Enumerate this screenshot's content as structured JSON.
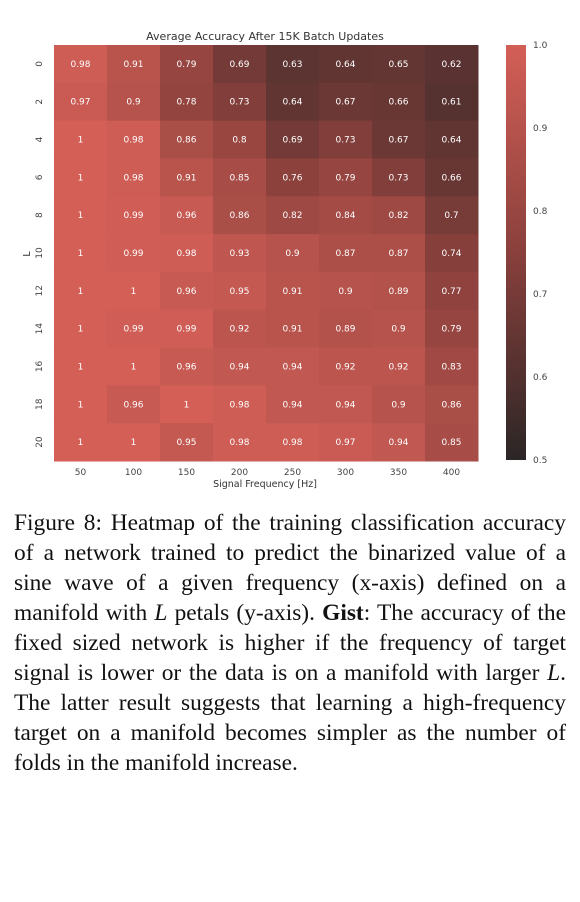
{
  "chart_data": {
    "type": "heatmap",
    "title": "Average Accuracy After 15K Batch Updates",
    "xlabel": "Signal Frequency [Hz]",
    "ylabel": "L",
    "x": [
      "50",
      "100",
      "150",
      "200",
      "250",
      "300",
      "350",
      "400"
    ],
    "y": [
      "0",
      "2",
      "4",
      "6",
      "8",
      "10",
      "12",
      "14",
      "16",
      "18",
      "20"
    ],
    "values": [
      [
        0.98,
        0.91,
        0.79,
        0.69,
        0.63,
        0.64,
        0.65,
        0.62
      ],
      [
        0.97,
        0.9,
        0.78,
        0.73,
        0.64,
        0.67,
        0.66,
        0.61
      ],
      [
        1,
        0.98,
        0.86,
        0.8,
        0.69,
        0.73,
        0.67,
        0.64
      ],
      [
        1,
        0.98,
        0.91,
        0.85,
        0.76,
        0.79,
        0.73,
        0.66
      ],
      [
        1,
        0.99,
        0.96,
        0.86,
        0.82,
        0.84,
        0.82,
        0.7
      ],
      [
        1,
        0.99,
        0.98,
        0.93,
        0.9,
        0.87,
        0.87,
        0.74
      ],
      [
        1,
        1,
        0.96,
        0.95,
        0.91,
        0.9,
        0.89,
        0.77
      ],
      [
        1,
        0.99,
        0.99,
        0.92,
        0.91,
        0.89,
        0.9,
        0.79
      ],
      [
        1,
        1,
        0.96,
        0.94,
        0.94,
        0.92,
        0.92,
        0.83
      ],
      [
        1,
        0.96,
        1,
        0.98,
        0.94,
        0.94,
        0.9,
        0.86
      ],
      [
        1,
        1,
        0.95,
        0.98,
        0.98,
        0.97,
        0.94,
        0.85
      ]
    ],
    "colorbar": {
      "range": [
        0.5,
        1.0
      ],
      "ticks": [
        "1.0",
        "0.9",
        "0.8",
        "0.7",
        "0.6",
        "0.5"
      ],
      "color_low": "#2b2626",
      "color_high": "#d35f57"
    }
  },
  "caption": {
    "label": "Figure 8:",
    "text_1": "Heatmap of the training classification accuracy of a network trained to predict the binarized value of a sine wave of a given frequency (x-axis) defined on a manifold with",
    "var_1": "L",
    "text_2": "petals (y-axis).",
    "gist_label": "Gist",
    "text_3": ": The accuracy of the fixed sized network is higher if the frequency of target signal is lower or the data is on a manifold with larger",
    "var_2": "L",
    "text_4": ". The latter result suggests that learning a high-frequency target on a manifold becomes simpler as the number of folds in the manifold increase."
  }
}
